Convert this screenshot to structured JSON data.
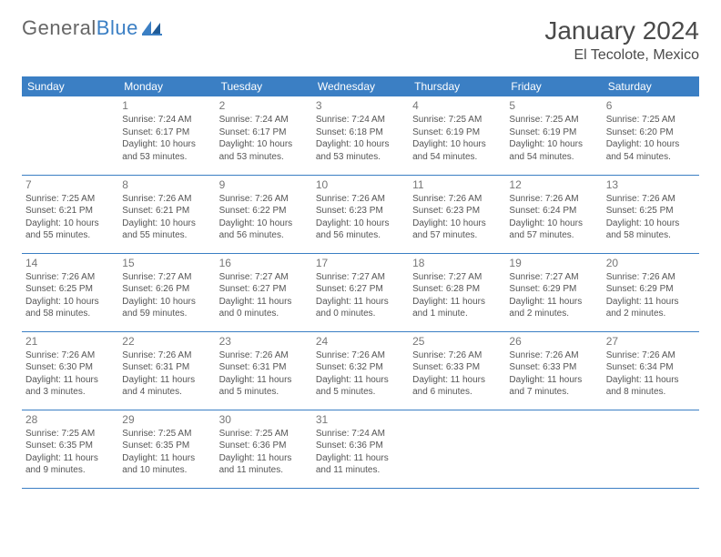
{
  "logo": {
    "word1": "General",
    "word2": "Blue"
  },
  "title": "January 2024",
  "location": "El Tecolote, Mexico",
  "colors": {
    "header_bg": "#3b7fc4",
    "header_fg": "#ffffff",
    "border": "#3b7fc4",
    "text": "#555555",
    "daynum": "#777777",
    "title": "#4a4a4a"
  },
  "weekdays": [
    "Sunday",
    "Monday",
    "Tuesday",
    "Wednesday",
    "Thursday",
    "Friday",
    "Saturday"
  ],
  "start_offset": 1,
  "days": [
    {
      "n": 1,
      "sr": "7:24 AM",
      "ss": "6:17 PM",
      "dl": "10 hours and 53 minutes."
    },
    {
      "n": 2,
      "sr": "7:24 AM",
      "ss": "6:17 PM",
      "dl": "10 hours and 53 minutes."
    },
    {
      "n": 3,
      "sr": "7:24 AM",
      "ss": "6:18 PM",
      "dl": "10 hours and 53 minutes."
    },
    {
      "n": 4,
      "sr": "7:25 AM",
      "ss": "6:19 PM",
      "dl": "10 hours and 54 minutes."
    },
    {
      "n": 5,
      "sr": "7:25 AM",
      "ss": "6:19 PM",
      "dl": "10 hours and 54 minutes."
    },
    {
      "n": 6,
      "sr": "7:25 AM",
      "ss": "6:20 PM",
      "dl": "10 hours and 54 minutes."
    },
    {
      "n": 7,
      "sr": "7:25 AM",
      "ss": "6:21 PM",
      "dl": "10 hours and 55 minutes."
    },
    {
      "n": 8,
      "sr": "7:26 AM",
      "ss": "6:21 PM",
      "dl": "10 hours and 55 minutes."
    },
    {
      "n": 9,
      "sr": "7:26 AM",
      "ss": "6:22 PM",
      "dl": "10 hours and 56 minutes."
    },
    {
      "n": 10,
      "sr": "7:26 AM",
      "ss": "6:23 PM",
      "dl": "10 hours and 56 minutes."
    },
    {
      "n": 11,
      "sr": "7:26 AM",
      "ss": "6:23 PM",
      "dl": "10 hours and 57 minutes."
    },
    {
      "n": 12,
      "sr": "7:26 AM",
      "ss": "6:24 PM",
      "dl": "10 hours and 57 minutes."
    },
    {
      "n": 13,
      "sr": "7:26 AM",
      "ss": "6:25 PM",
      "dl": "10 hours and 58 minutes."
    },
    {
      "n": 14,
      "sr": "7:26 AM",
      "ss": "6:25 PM",
      "dl": "10 hours and 58 minutes."
    },
    {
      "n": 15,
      "sr": "7:27 AM",
      "ss": "6:26 PM",
      "dl": "10 hours and 59 minutes."
    },
    {
      "n": 16,
      "sr": "7:27 AM",
      "ss": "6:27 PM",
      "dl": "11 hours and 0 minutes."
    },
    {
      "n": 17,
      "sr": "7:27 AM",
      "ss": "6:27 PM",
      "dl": "11 hours and 0 minutes."
    },
    {
      "n": 18,
      "sr": "7:27 AM",
      "ss": "6:28 PM",
      "dl": "11 hours and 1 minute."
    },
    {
      "n": 19,
      "sr": "7:27 AM",
      "ss": "6:29 PM",
      "dl": "11 hours and 2 minutes."
    },
    {
      "n": 20,
      "sr": "7:26 AM",
      "ss": "6:29 PM",
      "dl": "11 hours and 2 minutes."
    },
    {
      "n": 21,
      "sr": "7:26 AM",
      "ss": "6:30 PM",
      "dl": "11 hours and 3 minutes."
    },
    {
      "n": 22,
      "sr": "7:26 AM",
      "ss": "6:31 PM",
      "dl": "11 hours and 4 minutes."
    },
    {
      "n": 23,
      "sr": "7:26 AM",
      "ss": "6:31 PM",
      "dl": "11 hours and 5 minutes."
    },
    {
      "n": 24,
      "sr": "7:26 AM",
      "ss": "6:32 PM",
      "dl": "11 hours and 5 minutes."
    },
    {
      "n": 25,
      "sr": "7:26 AM",
      "ss": "6:33 PM",
      "dl": "11 hours and 6 minutes."
    },
    {
      "n": 26,
      "sr": "7:26 AM",
      "ss": "6:33 PM",
      "dl": "11 hours and 7 minutes."
    },
    {
      "n": 27,
      "sr": "7:26 AM",
      "ss": "6:34 PM",
      "dl": "11 hours and 8 minutes."
    },
    {
      "n": 28,
      "sr": "7:25 AM",
      "ss": "6:35 PM",
      "dl": "11 hours and 9 minutes."
    },
    {
      "n": 29,
      "sr": "7:25 AM",
      "ss": "6:35 PM",
      "dl": "11 hours and 10 minutes."
    },
    {
      "n": 30,
      "sr": "7:25 AM",
      "ss": "6:36 PM",
      "dl": "11 hours and 11 minutes."
    },
    {
      "n": 31,
      "sr": "7:24 AM",
      "ss": "6:36 PM",
      "dl": "11 hours and 11 minutes."
    }
  ]
}
